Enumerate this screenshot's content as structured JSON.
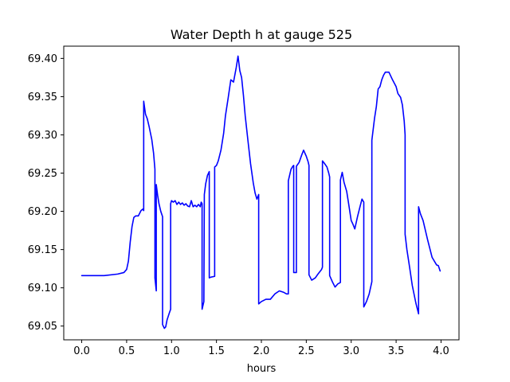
{
  "chart_data": {
    "type": "line",
    "title": "Water Depth h at gauge 525",
    "xlabel": "hours",
    "ylabel": "",
    "xlim": [
      -0.2,
      4.2
    ],
    "ylim": [
      69.032,
      69.416
    ],
    "xticks": [
      0.0,
      0.5,
      1.0,
      1.5,
      2.0,
      2.5,
      3.0,
      3.5,
      4.0
    ],
    "xtick_labels": [
      "0.0",
      "0.5",
      "1.0",
      "1.5",
      "2.0",
      "2.5",
      "3.0",
      "3.5",
      "4.0"
    ],
    "yticks": [
      69.05,
      69.1,
      69.15,
      69.2,
      69.25,
      69.3,
      69.35,
      69.4
    ],
    "ytick_labels": [
      "69.05",
      "69.10",
      "69.15",
      "69.20",
      "69.25",
      "69.30",
      "69.35",
      "69.40"
    ],
    "grid": false,
    "series": [
      {
        "color": "#0000ff",
        "points": [
          [
            0.0,
            69.116
          ],
          [
            0.25,
            69.116
          ],
          [
            0.4,
            69.118
          ],
          [
            0.47,
            69.12
          ],
          [
            0.5,
            69.124
          ],
          [
            0.52,
            69.135
          ],
          [
            0.54,
            69.16
          ],
          [
            0.56,
            69.18
          ],
          [
            0.58,
            69.192
          ],
          [
            0.6,
            69.194
          ],
          [
            0.63,
            69.194
          ],
          [
            0.66,
            69.201
          ],
          [
            0.68,
            69.203
          ],
          [
            0.69,
            69.201
          ],
          [
            0.69,
            69.344
          ],
          [
            0.71,
            69.327
          ],
          [
            0.73,
            69.321
          ],
          [
            0.75,
            69.311
          ],
          [
            0.78,
            69.294
          ],
          [
            0.8,
            69.276
          ],
          [
            0.815,
            69.255
          ],
          [
            0.815,
            69.113
          ],
          [
            0.83,
            69.096
          ],
          [
            0.83,
            69.235
          ],
          [
            0.845,
            69.221
          ],
          [
            0.86,
            69.21
          ],
          [
            0.88,
            69.2
          ],
          [
            0.9,
            69.193
          ],
          [
            0.9,
            69.052
          ],
          [
            0.92,
            69.047
          ],
          [
            0.935,
            69.049
          ],
          [
            0.95,
            69.058
          ],
          [
            0.975,
            69.067
          ],
          [
            0.99,
            69.072
          ],
          [
            0.99,
            69.21
          ],
          [
            1.0,
            69.214
          ],
          [
            1.02,
            69.212
          ],
          [
            1.04,
            69.214
          ],
          [
            1.06,
            69.209
          ],
          [
            1.08,
            69.212
          ],
          [
            1.1,
            69.209
          ],
          [
            1.12,
            69.211
          ],
          [
            1.14,
            69.208
          ],
          [
            1.16,
            69.21
          ],
          [
            1.18,
            69.207
          ],
          [
            1.2,
            69.206
          ],
          [
            1.22,
            69.214
          ],
          [
            1.24,
            69.206
          ],
          [
            1.26,
            69.208
          ],
          [
            1.28,
            69.206
          ],
          [
            1.3,
            69.209
          ],
          [
            1.32,
            69.206
          ],
          [
            1.33,
            69.212
          ],
          [
            1.34,
            69.21
          ],
          [
            1.34,
            69.072
          ],
          [
            1.36,
            69.082
          ],
          [
            1.365,
            69.222
          ],
          [
            1.38,
            69.236
          ],
          [
            1.4,
            69.247
          ],
          [
            1.42,
            69.252
          ],
          [
            1.42,
            69.113
          ],
          [
            1.44,
            69.114
          ],
          [
            1.48,
            69.115
          ],
          [
            1.48,
            69.258
          ],
          [
            1.5,
            69.26
          ],
          [
            1.52,
            69.266
          ],
          [
            1.55,
            69.28
          ],
          [
            1.58,
            69.302
          ],
          [
            1.6,
            69.325
          ],
          [
            1.63,
            69.348
          ],
          [
            1.66,
            69.372
          ],
          [
            1.69,
            69.369
          ],
          [
            1.72,
            69.388
          ],
          [
            1.74,
            69.403
          ],
          [
            1.76,
            69.384
          ],
          [
            1.78,
            69.375
          ],
          [
            1.8,
            69.352
          ],
          [
            1.82,
            69.325
          ],
          [
            1.85,
            69.293
          ],
          [
            1.88,
            69.262
          ],
          [
            1.91,
            69.237
          ],
          [
            1.93,
            69.224
          ],
          [
            1.95,
            69.216
          ],
          [
            1.97,
            69.222
          ],
          [
            1.97,
            69.079
          ],
          [
            2.0,
            69.082
          ],
          [
            2.05,
            69.085
          ],
          [
            2.1,
            69.085
          ],
          [
            2.15,
            69.092
          ],
          [
            2.2,
            69.096
          ],
          [
            2.25,
            69.094
          ],
          [
            2.28,
            69.092
          ],
          [
            2.3,
            69.092
          ],
          [
            2.3,
            69.24
          ],
          [
            2.33,
            69.255
          ],
          [
            2.35,
            69.259
          ],
          [
            2.36,
            69.26
          ],
          [
            2.36,
            69.12
          ],
          [
            2.38,
            69.12
          ],
          [
            2.39,
            69.12
          ],
          [
            2.39,
            69.259
          ],
          [
            2.42,
            69.264
          ],
          [
            2.45,
            69.274
          ],
          [
            2.47,
            69.28
          ],
          [
            2.5,
            69.272
          ],
          [
            2.52,
            69.265
          ],
          [
            2.53,
            69.26
          ],
          [
            2.53,
            69.117
          ],
          [
            2.56,
            69.11
          ],
          [
            2.6,
            69.113
          ],
          [
            2.63,
            69.118
          ],
          [
            2.67,
            69.124
          ],
          [
            2.68,
            69.127
          ],
          [
            2.68,
            69.266
          ],
          [
            2.7,
            69.263
          ],
          [
            2.73,
            69.258
          ],
          [
            2.75,
            69.25
          ],
          [
            2.76,
            69.245
          ],
          [
            2.76,
            69.116
          ],
          [
            2.79,
            69.108
          ],
          [
            2.82,
            69.101
          ],
          [
            2.85,
            69.105
          ],
          [
            2.88,
            69.107
          ],
          [
            2.88,
            69.241
          ],
          [
            2.9,
            69.251
          ],
          [
            2.92,
            69.238
          ],
          [
            2.95,
            69.226
          ],
          [
            2.97,
            69.211
          ],
          [
            3.0,
            69.188
          ],
          [
            3.02,
            69.183
          ],
          [
            3.04,
            69.177
          ],
          [
            3.07,
            69.193
          ],
          [
            3.1,
            69.207
          ],
          [
            3.12,
            69.216
          ],
          [
            3.14,
            69.212
          ],
          [
            3.14,
            69.075
          ],
          [
            3.17,
            69.082
          ],
          [
            3.2,
            69.092
          ],
          [
            3.23,
            69.108
          ],
          [
            3.23,
            69.293
          ],
          [
            3.26,
            69.322
          ],
          [
            3.28,
            69.337
          ],
          [
            3.3,
            69.36
          ],
          [
            3.32,
            69.363
          ],
          [
            3.34,
            69.372
          ],
          [
            3.36,
            69.378
          ],
          [
            3.38,
            69.382
          ],
          [
            3.42,
            69.382
          ],
          [
            3.46,
            69.372
          ],
          [
            3.5,
            69.363
          ],
          [
            3.52,
            69.354
          ],
          [
            3.55,
            69.349
          ],
          [
            3.57,
            69.339
          ],
          [
            3.59,
            69.318
          ],
          [
            3.6,
            69.3
          ],
          [
            3.6,
            69.17
          ],
          [
            3.62,
            69.15
          ],
          [
            3.65,
            69.127
          ],
          [
            3.68,
            69.103
          ],
          [
            3.72,
            69.08
          ],
          [
            3.75,
            69.066
          ],
          [
            3.75,
            69.206
          ],
          [
            3.77,
            69.197
          ],
          [
            3.8,
            69.188
          ],
          [
            3.85,
            69.163
          ],
          [
            3.9,
            69.14
          ],
          [
            3.95,
            69.13
          ],
          [
            3.97,
            69.129
          ],
          [
            3.99,
            69.122
          ]
        ]
      }
    ]
  }
}
